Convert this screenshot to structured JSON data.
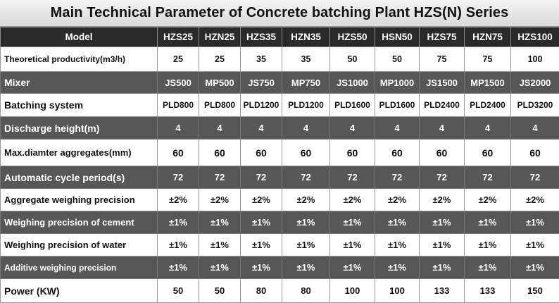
{
  "title": "Main Technical Parameter of Concrete batching Plant HZS(N) Series",
  "table": {
    "header": [
      "Model",
      "HZS25",
      "HZN25",
      "HZS35",
      "HZN35",
      "HZS50",
      "HSN50",
      "HZS75",
      "HZN75",
      "HZS100"
    ],
    "rows": [
      {
        "label": "Theoretical productivity(m3/h)",
        "values": [
          "25",
          "25",
          "35",
          "35",
          "50",
          "50",
          "75",
          "75",
          "100"
        ]
      },
      {
        "label": "Mixer",
        "values": [
          "JS500",
          "MP500",
          "JS750",
          "MP750",
          "JS1000",
          "MP1000",
          "JS1500",
          "MP1500",
          "JS2000"
        ]
      },
      {
        "label": "Batching system",
        "values": [
          "PLD800",
          "PLD800",
          "PLD1200",
          "PLD1200",
          "PLD1600",
          "PLD1600",
          "PLD2400",
          "PLD2400",
          "PLD3200"
        ]
      },
      {
        "label": "Discharge height(m)",
        "values": [
          "4",
          "4",
          "4",
          "4",
          "4",
          "4",
          "4",
          "4",
          "4"
        ]
      },
      {
        "label": "Max.diamter aggregates(mm)",
        "values": [
          "60",
          "60",
          "60",
          "60",
          "60",
          "60",
          "60",
          "60",
          "60"
        ]
      },
      {
        "label": "Automatic cycle period(s)",
        "values": [
          "72",
          "72",
          "72",
          "72",
          "72",
          "72",
          "72",
          "72",
          "72"
        ]
      },
      {
        "label": "Aggregate weighing precision",
        "values": [
          "±2%",
          "±2%",
          "±2%",
          "±2%",
          "±2%",
          "±2%",
          "±2%",
          "±2%",
          "±2%"
        ]
      },
      {
        "label": "Weighing precision of cement",
        "values": [
          "±1%",
          "±1%",
          "±1%",
          "±1%",
          "±1%",
          "±1%",
          "±1%",
          "±1%",
          "±1%"
        ]
      },
      {
        "label": "Weighing precision of water",
        "values": [
          "±1%",
          "±1%",
          "±1%",
          "±1%",
          "±1%",
          "±1%",
          "±1%",
          "±1%",
          "±1%"
        ]
      },
      {
        "label": "Additive weighing precision",
        "values": [
          "±1%",
          "±1%",
          "±1%",
          "±1%",
          "±1%",
          "±1%",
          "±1%",
          "±1%",
          "±1%"
        ]
      },
      {
        "label": "Power (KW)",
        "values": [
          "50",
          "50",
          "80",
          "80",
          "100",
          "100",
          "133",
          "133",
          "150"
        ]
      }
    ]
  }
}
